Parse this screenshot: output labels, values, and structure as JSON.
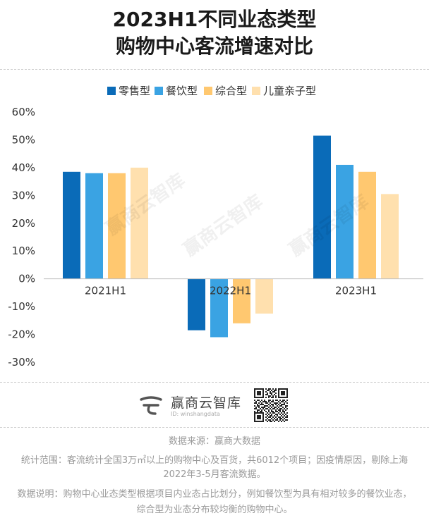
{
  "title_line1": "2023H1不同业态类型",
  "title_line2": "购物中心客流增速对比",
  "brand": {
    "name": "赢商云智库",
    "id_text": "ID: winshangdata"
  },
  "watermark_text": "赢商云智库",
  "footer": {
    "source": "数据来源：赢商大数据",
    "scope_line1": "统计范围：客流统计全国3万㎡以上的购物中心及百货，共6012个项目；因疫情原因，剔除上海",
    "scope_line2": "2022年3-5月客流数据。",
    "note_line1": "数据说明：购物中心业态类型根据项目内业态占比划分，例如餐饮型为具有相对较多的餐饮业态，",
    "note_line2": "综合型为业态分布较均衡的购物中心。"
  },
  "chart_data": {
    "type": "bar",
    "title": "2023H1不同业态类型购物中心客流增速对比",
    "categories": [
      "2021H1",
      "2022H1",
      "2023H1"
    ],
    "series": [
      {
        "name": "零售型",
        "color": "#0a6bb8",
        "values": [
          38.5,
          -18.5,
          51.5
        ]
      },
      {
        "name": "餐饮型",
        "color": "#3aa3e3",
        "values": [
          38.0,
          -21.0,
          41.0
        ]
      },
      {
        "name": "综合型",
        "color": "#ffc870",
        "values": [
          38.0,
          -16.0,
          38.5
        ]
      },
      {
        "name": "儿童亲子型",
        "color": "#ffe0ae",
        "values": [
          40.0,
          -12.5,
          30.5
        ]
      }
    ],
    "ylim": [
      -30,
      60
    ],
    "yticks": [
      -30,
      -20,
      -10,
      0,
      10,
      20,
      30,
      40,
      50,
      60
    ],
    "ytick_labels": [
      "-30%",
      "-20%",
      "-10%",
      "0%",
      "10%",
      "20%",
      "30%",
      "40%",
      "50%",
      "60%"
    ],
    "legend_position": "top-center",
    "grid": false
  }
}
